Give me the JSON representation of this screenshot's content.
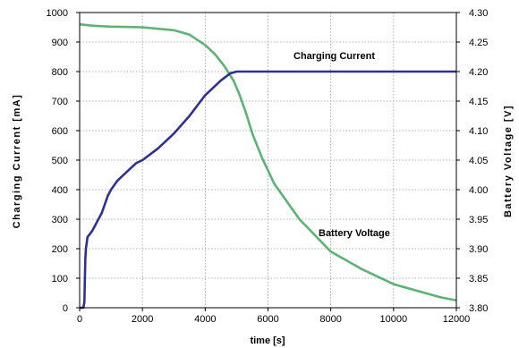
{
  "chart_data": {
    "type": "line",
    "title": "",
    "xlabel": "time [s]",
    "ylabel": "Charging Current [mA]",
    "y2label": "Battery Voltage [V]",
    "xlim": [
      0,
      12000
    ],
    "ylim": [
      0,
      1000
    ],
    "y2lim": [
      3.8,
      4.3
    ],
    "x_ticks": [
      0,
      2000,
      4000,
      6000,
      8000,
      10000,
      12000
    ],
    "x_tick_labels": [
      "0",
      "2000",
      "4000",
      "6000",
      "8000",
      "10000",
      "12000"
    ],
    "y_ticks": [
      0,
      100,
      200,
      300,
      400,
      500,
      600,
      700,
      800,
      900,
      1000
    ],
    "y_tick_labels": [
      "0",
      "100",
      "200",
      "300",
      "400",
      "500",
      "600",
      "700",
      "800",
      "900",
      "1000"
    ],
    "y2_ticks": [
      3.8,
      3.85,
      3.9,
      3.95,
      4.0,
      4.05,
      4.1,
      4.15,
      4.2,
      4.25,
      4.3
    ],
    "y2_tick_labels": [
      "3.80",
      "3.85",
      "3.90",
      "3.95",
      "4.00",
      "4.05",
      "4.10",
      "4.15",
      "4.20",
      "4.25",
      "4.30"
    ],
    "grid": true,
    "annotations": [
      {
        "text": "Charging Current",
        "series": "current"
      },
      {
        "text": "Battery Voltage",
        "series": "voltage"
      }
    ],
    "series": [
      {
        "id": "current",
        "axis": "left",
        "color": "#5cb374",
        "x": [
          0,
          200,
          500,
          1000,
          2000,
          3000,
          3500,
          4000,
          4300,
          4600,
          4900,
          5100,
          5300,
          5500,
          5800,
          6200,
          7000,
          8000,
          9000,
          10000,
          11000,
          11500,
          12000
        ],
        "y": [
          960,
          958,
          955,
          952,
          950,
          940,
          925,
          890,
          860,
          820,
          770,
          720,
          660,
          590,
          510,
          420,
          300,
          190,
          130,
          80,
          50,
          35,
          25
        ]
      },
      {
        "id": "voltage",
        "axis": "right",
        "color": "#2e3192",
        "x": [
          0,
          120,
          150,
          180,
          200,
          250,
          300,
          400,
          500,
          600,
          700,
          800,
          900,
          1000,
          1200,
          1500,
          1800,
          2000,
          2500,
          3000,
          3500,
          4000,
          4500,
          4800,
          5000,
          6000,
          8000,
          10000,
          12000
        ],
        "y": [
          3.8,
          3.8,
          3.81,
          3.88,
          3.9,
          3.92,
          3.923,
          3.93,
          3.94,
          3.95,
          3.96,
          3.975,
          3.99,
          4.0,
          4.015,
          4.03,
          4.045,
          4.05,
          4.07,
          4.095,
          4.125,
          4.16,
          4.185,
          4.197,
          4.2,
          4.2,
          4.2,
          4.2,
          4.2
        ]
      }
    ]
  }
}
